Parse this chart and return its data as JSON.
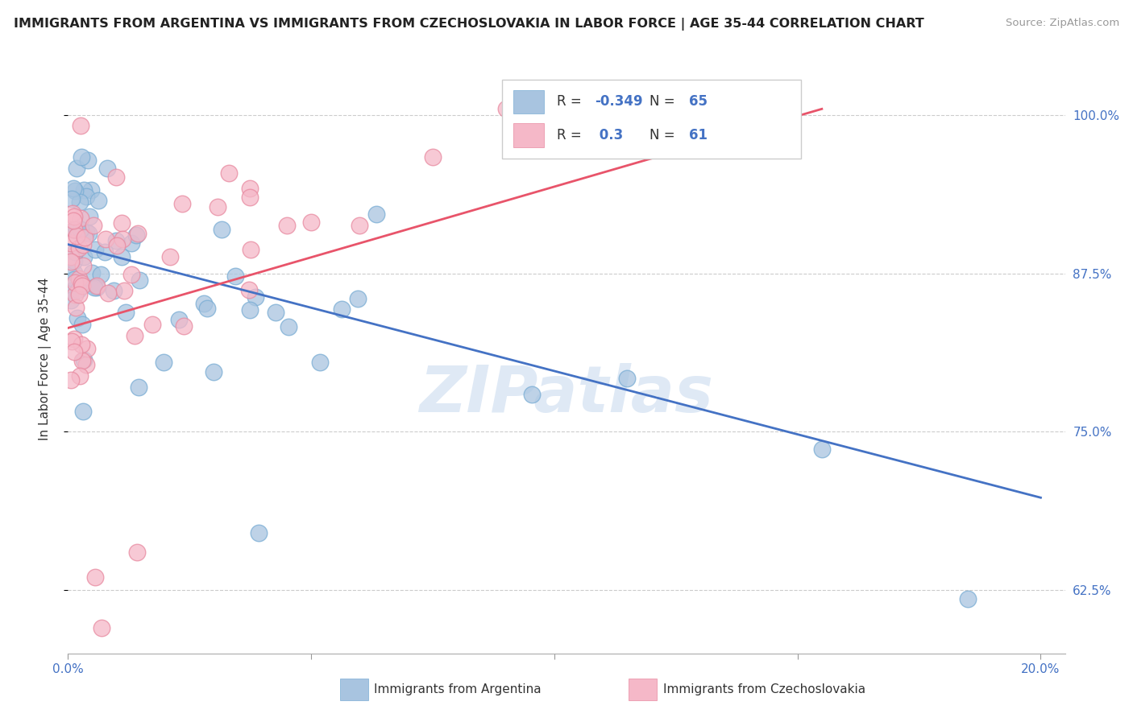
{
  "title": "IMMIGRANTS FROM ARGENTINA VS IMMIGRANTS FROM CZECHOSLOVAKIA IN LABOR FORCE | AGE 35-44 CORRELATION CHART",
  "source": "Source: ZipAtlas.com",
  "ylabel": "In Labor Force | Age 35-44",
  "xlim": [
    0.0,
    0.205
  ],
  "ylim": [
    0.575,
    1.04
  ],
  "yticks": [
    0.625,
    0.75,
    0.875,
    1.0
  ],
  "yticklabels": [
    "62.5%",
    "75.0%",
    "87.5%",
    "100.0%"
  ],
  "xticks": [
    0.0,
    0.05,
    0.1,
    0.15,
    0.2
  ],
  "xticklabels": [
    "0.0%",
    "",
    "",
    "",
    "20.0%"
  ],
  "argentina_color": "#a8c4e0",
  "argentina_edge_color": "#7aadd4",
  "czechoslovakia_color": "#f5b8c8",
  "czechoslovakia_edge_color": "#e88aa0",
  "argentina_line_color": "#4472c4",
  "czechoslovakia_line_color": "#e8546a",
  "R_argentina": -0.349,
  "N_argentina": 65,
  "R_czechoslovakia": 0.3,
  "N_czechoslovakia": 61,
  "legend_R_color": "#4472c4",
  "legend_N_color": "#4472c4",
  "watermark": "ZIPatlas",
  "watermark_color": "#c5d8ee",
  "arg_line_x0": 0.0,
  "arg_line_y0": 0.898,
  "arg_line_x1": 0.2,
  "arg_line_y1": 0.698,
  "czech_line_x0": 0.0,
  "czech_line_y0": 0.832,
  "czech_line_x1": 0.155,
  "czech_line_y1": 1.005
}
